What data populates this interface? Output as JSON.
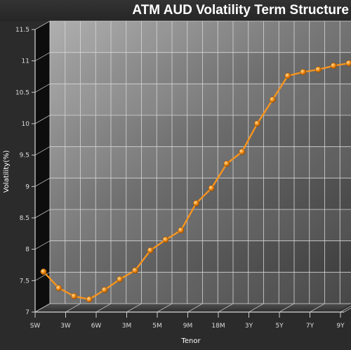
{
  "chart_data": {
    "type": "line",
    "title": "ATM AUD Volatility Term Structure",
    "xlabel": "Tenor",
    "ylabel": "Volatility(%)",
    "ylim": [
      7,
      11.5
    ],
    "y_ticks": [
      "7",
      "7.5",
      "8",
      "8.5",
      "9",
      "9.5",
      "10",
      "10.5",
      "11",
      "11.5"
    ],
    "x_ticks": [
      "SW",
      "3W",
      "6W",
      "3M",
      "5M",
      "9M",
      "18M",
      "3Y",
      "5Y",
      "7Y",
      "9Y"
    ],
    "grid": true,
    "legend": "none",
    "series": [
      {
        "values": [
          7.62,
          7.36,
          7.23,
          7.18,
          7.33,
          7.5,
          7.64,
          7.96,
          8.13,
          8.28,
          8.71,
          8.95,
          9.34,
          9.53,
          9.98,
          10.36,
          10.74,
          10.8,
          10.84,
          10.9,
          10.94,
          10.97
        ]
      }
    ],
    "colors": {
      "line": "#f7941d",
      "marker": "#f7941d",
      "background": "#2b2b2b",
      "title_bar": "#333333"
    }
  }
}
